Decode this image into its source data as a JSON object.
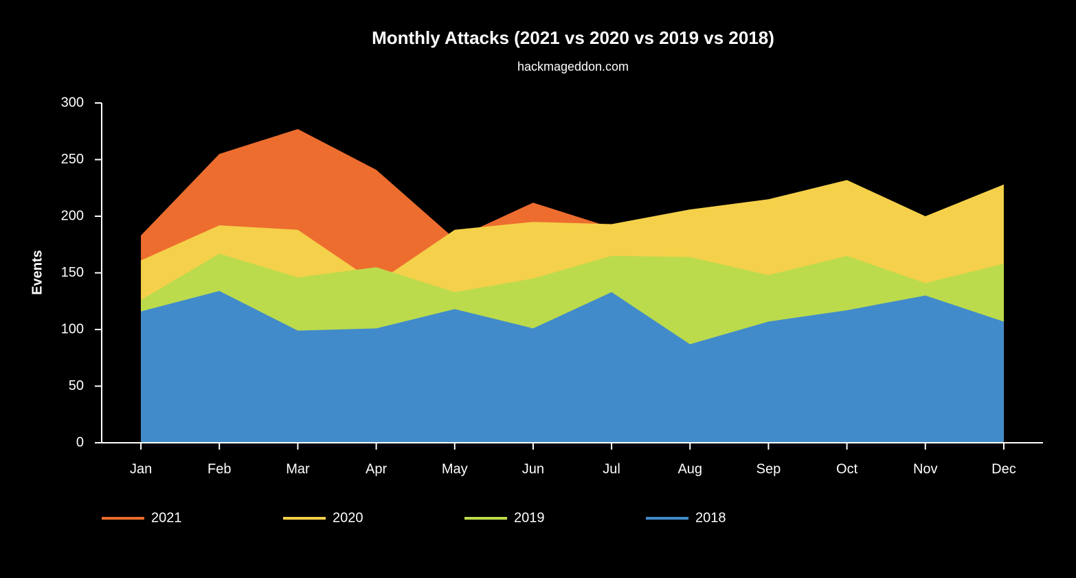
{
  "chart_data": {
    "type": "area",
    "title": "Monthly Attacks (2021 vs 2020 vs 2019 vs 2018)",
    "subtitle": "hackmageddon.com",
    "y_label": "Events",
    "categories": [
      "Jan",
      "Feb",
      "Mar",
      "Apr",
      "May",
      "Jun",
      "Jul",
      "Aug",
      "Sep",
      "Oct",
      "Nov",
      "Dec"
    ],
    "series": [
      {
        "name": "2021",
        "color": "#ed6d2f",
        "values": [
          183,
          255,
          277,
          241,
          180,
          212,
          190,
          null,
          null,
          null,
          null,
          null
        ]
      },
      {
        "name": "2020",
        "color": "#f5d04a",
        "values": [
          161,
          192,
          188,
          141,
          188,
          195,
          193,
          206,
          215,
          232,
          200,
          228
        ]
      },
      {
        "name": "2019",
        "color": "#bcdb4c",
        "values": [
          126,
          167,
          146,
          155,
          133,
          145,
          165,
          164,
          148,
          165,
          141,
          158
        ]
      },
      {
        "name": "2018",
        "color": "#418bca",
        "values": [
          116,
          134,
          99,
          101,
          118,
          101,
          133,
          87,
          107,
          117,
          130,
          107
        ]
      }
    ],
    "ylim": [
      0,
      300
    ],
    "yticks": [
      0,
      50,
      100,
      150,
      200,
      250,
      300
    ]
  }
}
